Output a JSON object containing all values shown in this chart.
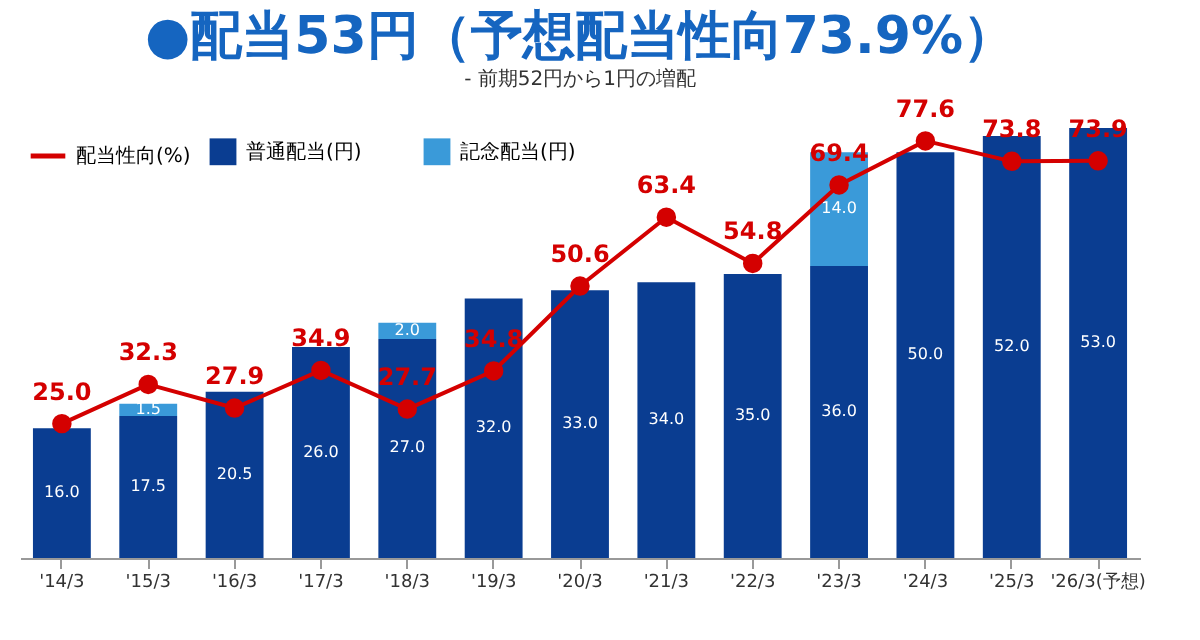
{
  "chart_data": {
    "type": "bar",
    "title": "●配当53円（予想配当性向73.9%）",
    "subtitle": "- 前期52円から1円の増配",
    "categories": [
      "'14/3",
      "'15/3",
      "'16/3",
      "'17/3",
      "'18/3",
      "'19/3",
      "'20/3",
      "'21/3",
      "'22/3",
      "'23/3",
      "'24/3",
      "'25/3",
      "'26/3(予想)"
    ],
    "stacked": true,
    "tick_labels": "x",
    "grid": false,
    "legend": "top left",
    "series": [
      {
        "name": "普通配当(円)",
        "color": "#0a3d91",
        "values": [
          16,
          17.5,
          20.5,
          26,
          27,
          32,
          33,
          34,
          35,
          36,
          50,
          52,
          53
        ],
        "value_labels": [
          "16.0",
          "17.5",
          "20.5",
          "26.0",
          "27.0",
          "32.0",
          "33.0",
          "34.0",
          "35.0",
          "36.0",
          "50.0",
          "52.0",
          "53.0"
        ]
      },
      {
        "name": "記念配当(円)",
        "color": "#3a9ad9",
        "values": [
          null,
          1.5,
          null,
          null,
          2,
          null,
          null,
          null,
          null,
          14,
          null,
          null,
          null
        ],
        "value_labels": [
          null,
          "1.5",
          null,
          null,
          "2.0",
          null,
          null,
          null,
          null,
          "14.0",
          null,
          null,
          null
        ]
      },
      {
        "name": "配当性向(%)",
        "type": "line",
        "axis": "y2",
        "color": "#d40000",
        "marker": "circle",
        "values": [
          25,
          32.3,
          27.9,
          34.9,
          27.7,
          34.8,
          50.6,
          63.4,
          54.8,
          69.4,
          77.6,
          73.8,
          73.9
        ],
        "value_labels": [
          "25.0",
          "32.3",
          "27.9",
          "34.9",
          "27.7",
          "34.8",
          "50.6",
          "63.4",
          "54.8",
          "69.4",
          "77.6",
          "73.8",
          "73.9"
        ]
      }
    ]
  }
}
